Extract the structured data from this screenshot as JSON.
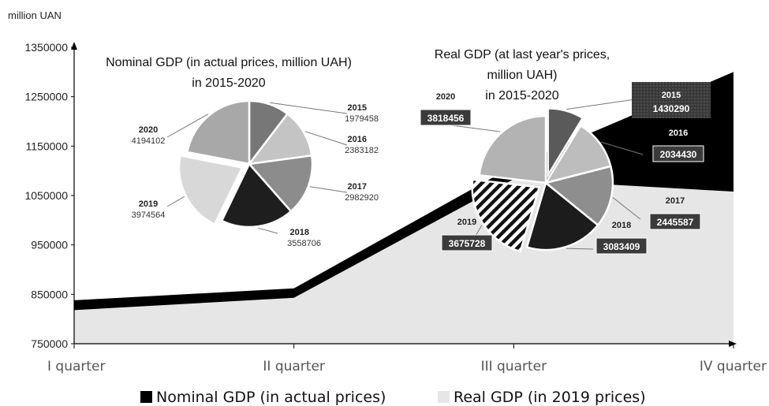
{
  "chart_data": {
    "type": "area",
    "y_unit": "million UAN",
    "categories": [
      "I quarter",
      "II quarter",
      "III quarter",
      "IV quarter"
    ],
    "ylim": [
      750000,
      1350000
    ],
    "yticks": [
      "1350000",
      "1250000",
      "1150000",
      "1050000",
      "950000",
      "850000",
      "750000"
    ],
    "legend_position": "bottom",
    "colors": {
      "nominal": "#000000",
      "real": "#e6e6e6"
    },
    "series": [
      {
        "name": "Nominal GDP (in actual prices)",
        "values": [
          838000,
          862000,
          1110000,
          1300000
        ]
      },
      {
        "name": "Real GDP (in 2019 prices)",
        "values": [
          818000,
          843000,
          1083000,
          1058000
        ]
      }
    ],
    "insets": [
      {
        "type": "pie",
        "title_lines": [
          "Nominal GDP (in actual prices,  million UAH)",
          "in 2015-2020"
        ],
        "slices": [
          {
            "year": "2015",
            "value": 1979458,
            "label": "1979458",
            "color": "#777777",
            "exploded": false
          },
          {
            "year": "2016",
            "value": 2383182,
            "label": "2383182",
            "color": "#c4c4c4",
            "exploded": false
          },
          {
            "year": "2017",
            "value": 2982920,
            "label": "2982920",
            "color": "#8c8c8c",
            "exploded": false
          },
          {
            "year": "2018",
            "value": 3558706,
            "label": "3558706",
            "color": "#1e1e1e",
            "exploded": false
          },
          {
            "year": "2019",
            "value": 3974564,
            "label": "3974564",
            "color": "#d8d8d8",
            "exploded": true
          },
          {
            "year": "2020",
            "value": 4194102,
            "label": "4194102",
            "color": "#a8a8a8",
            "exploded": false
          }
        ]
      },
      {
        "type": "pie",
        "title_lines": [
          "Real GDP  (at last year's prices,",
          "million UAH)",
          "in 2015-2020"
        ],
        "slices": [
          {
            "year": "2015",
            "value": 1430290,
            "label": "1430290",
            "color": "#5a5a5a",
            "exploded": true
          },
          {
            "year": "2016",
            "value": 2034430,
            "label": "2034430",
            "color": "#bdbdbd",
            "exploded": false
          },
          {
            "year": "2017",
            "value": 2445587,
            "label": "2445587",
            "color": "#8e8e8e",
            "exploded": false
          },
          {
            "year": "2018",
            "value": 3083409,
            "label": "3083409",
            "color": "#1c1c1c",
            "exploded": false
          },
          {
            "year": "2019",
            "value": 3675728,
            "label": "3675728",
            "color": "hatch",
            "exploded": true
          },
          {
            "year": "2020",
            "value": 3818456,
            "label": "3818456",
            "color": "#b3b3b3",
            "exploded": false
          }
        ]
      }
    ]
  }
}
